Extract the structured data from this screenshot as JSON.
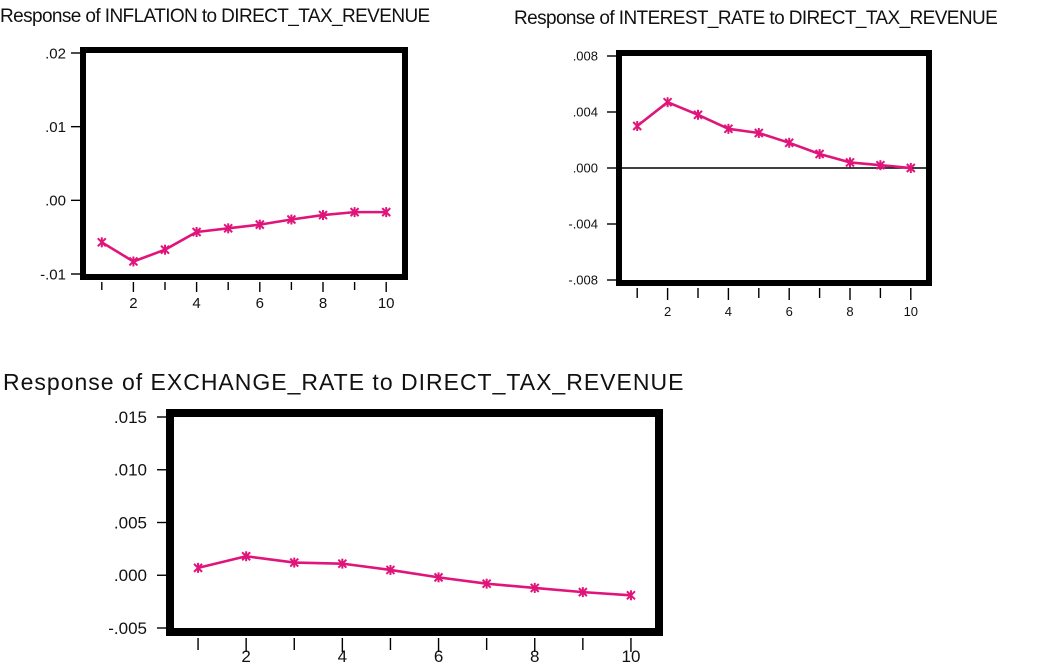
{
  "chart_data": [
    {
      "type": "line",
      "title": "Response of INFLATION to DIRECT_TAX_REVENUE",
      "x": [
        1,
        2,
        3,
        4,
        5,
        6,
        7,
        8,
        9,
        10
      ],
      "series": [
        {
          "values": [
            -0.0057,
            -0.0083,
            -0.0067,
            -0.0043,
            -0.0038,
            -0.0033,
            -0.0026,
            -0.002,
            -0.0016,
            -0.0016
          ]
        }
      ],
      "xticks": [
        2,
        4,
        6,
        8,
        10
      ],
      "xtick_labels": [
        "2",
        "4",
        "6",
        "8",
        "10"
      ],
      "yticks": [
        -0.01,
        0.0,
        0.01,
        0.02
      ],
      "ytick_labels": [
        "-.01",
        ".00",
        ".01",
        ".02"
      ],
      "xlim": [
        0.5,
        10.5
      ],
      "ylim": [
        -0.01,
        0.02
      ],
      "zero_line": false,
      "color": "#e0147a"
    },
    {
      "type": "line",
      "title": "Response of INTEREST_RATE to DIRECT_TAX_REVENUE",
      "x": [
        1,
        2,
        3,
        4,
        5,
        6,
        7,
        8,
        9,
        10
      ],
      "series": [
        {
          "values": [
            0.003,
            0.0047,
            0.0038,
            0.0028,
            0.0025,
            0.0018,
            0.001,
            0.0004,
            0.0002,
            0.0
          ]
        }
      ],
      "xticks": [
        2,
        4,
        6,
        8,
        10
      ],
      "xtick_labels": [
        "2",
        "4",
        "6",
        "8",
        "10"
      ],
      "yticks": [
        -0.008,
        -0.004,
        0.0,
        0.004,
        0.008
      ],
      "ytick_labels": [
        "-.008",
        "-.004",
        ".000",
        ".004",
        ".008"
      ],
      "xlim": [
        0.5,
        10.5
      ],
      "ylim": [
        -0.008,
        0.008
      ],
      "zero_line": true,
      "color": "#e0147a"
    },
    {
      "type": "line",
      "title": "Response of EXCHANGE_RATE to DIRECT_TAX_REVENUE",
      "x": [
        1,
        2,
        3,
        4,
        5,
        6,
        7,
        8,
        9,
        10
      ],
      "series": [
        {
          "values": [
            0.0007,
            0.0018,
            0.0012,
            0.0011,
            0.0005,
            -0.0002,
            -0.0008,
            -0.0012,
            -0.0016,
            -0.0019
          ]
        }
      ],
      "xticks": [
        2,
        4,
        6,
        8,
        10
      ],
      "xtick_labels": [
        "2",
        "4",
        "6",
        "8",
        "10"
      ],
      "yticks": [
        -0.005,
        0.0,
        0.005,
        0.01,
        0.015
      ],
      "ytick_labels": [
        "-.005",
        ".000",
        ".005",
        ".010",
        ".015"
      ],
      "xlim": [
        0.5,
        10.5
      ],
      "ylim": [
        -0.005,
        0.015
      ],
      "zero_line": false,
      "color": "#e0147a"
    }
  ]
}
